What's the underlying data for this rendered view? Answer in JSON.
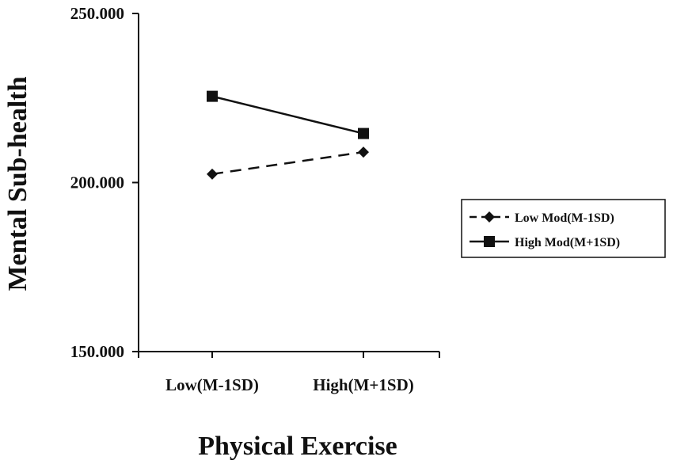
{
  "chart_data": {
    "type": "line",
    "title": "",
    "xlabel": "Physical Exercise",
    "ylabel": "Mental Sub-health",
    "categories": [
      "Low(M-1SD)",
      "High(M+1SD)"
    ],
    "ylim": [
      150,
      250
    ],
    "yticks": [
      "150.000",
      "200.000",
      "250.000"
    ],
    "grid": false,
    "legend_position": "right",
    "series": [
      {
        "name": "Low Mod(M-1SD)",
        "values": [
          202.5,
          209
        ],
        "line_style": "dashed",
        "marker": "diamond",
        "color": "#111111"
      },
      {
        "name": "High Mod(M+1SD)",
        "values": [
          225.5,
          214.5
        ],
        "line_style": "solid",
        "marker": "square",
        "color": "#111111"
      }
    ]
  }
}
